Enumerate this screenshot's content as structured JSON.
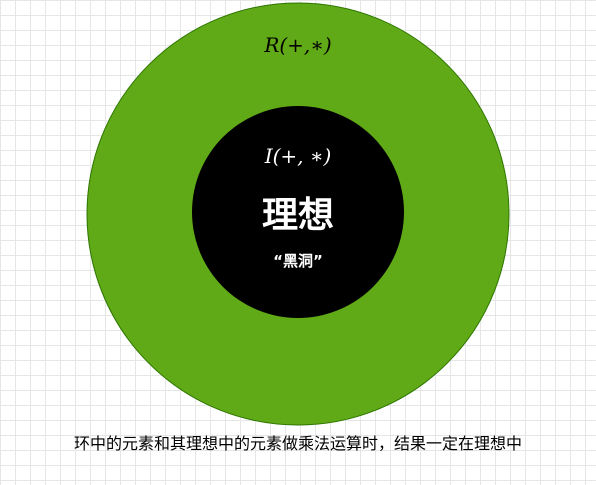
{
  "outer_ring": {
    "label": "R(+,∗)",
    "fill_color": "#60a917",
    "stroke_color": "#2d7600"
  },
  "inner_circle": {
    "label": "I(+, ∗)",
    "title": "理想",
    "subtitle": "“黑洞”",
    "fill_color": "#000000",
    "text_color": "#ffffff"
  },
  "caption": "环中的元素和其理想中的元素做乘法运算时，结果一定在理想中"
}
